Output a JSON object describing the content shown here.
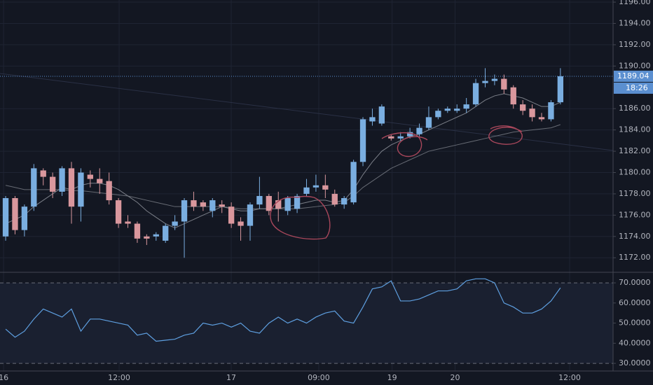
{
  "chart_data": [
    {
      "type": "candlestick",
      "xlim": [
        -0.6,
        64.6
      ],
      "xticks": [
        {
          "value": -0.22,
          "label": "16"
        },
        {
          "value": 12.07,
          "label": "12:00"
        },
        {
          "value": 23.99,
          "label": "17"
        },
        {
          "value": 33.3,
          "label": "09:00"
        },
        {
          "value": 41.1,
          "label": "19"
        },
        {
          "value": 47.8,
          "label": "20"
        },
        {
          "value": 59.98,
          "label": "12:00"
        }
      ],
      "ylim": [
        1170.7,
        1196.2
      ],
      "yticks": [
        {
          "value": 1172,
          "label": "1172.00"
        },
        {
          "value": 1174,
          "label": "1174.00"
        },
        {
          "value": 1176,
          "label": "1176.00"
        },
        {
          "value": 1178,
          "label": "1178.00"
        },
        {
          "value": 1180,
          "label": "1180.00"
        },
        {
          "value": 1182,
          "label": "1182.00"
        },
        {
          "value": 1184,
          "label": "1184.00"
        },
        {
          "value": 1186,
          "label": "1186.00"
        },
        {
          "value": 1190,
          "label": "1190.00"
        },
        {
          "value": 1192,
          "label": "1192.00"
        },
        {
          "value": 1194,
          "label": "1194.00"
        },
        {
          "value": 1196,
          "label": "1196.00"
        }
      ],
      "grid": true,
      "up_color": "#7aaee0",
      "down_color": "#d9979d",
      "open": [
        1174,
        1177.6,
        1174.6,
        1176.8,
        1180.2,
        1179.6,
        1178.2,
        1180.4,
        1176.8,
        1179.8,
        1179.4,
        1179.2,
        1177.4,
        1175.4,
        1175.2,
        1174,
        1174,
        1173.6,
        1175,
        1175.4,
        1177.4,
        1177.2,
        1176.4,
        1177,
        1176.8,
        1175.4,
        1175,
        1177,
        1177.8,
        1177.4,
        1176.4,
        1176.6,
        1178,
        1178.6,
        1178.8,
        1178,
        1177,
        1177.2,
        1181,
        1184.8,
        1184.6,
        1183.4,
        1183.2,
        1183.4,
        1183.6,
        1184.2,
        1185.2,
        1185.8,
        1185.8,
        1186,
        1186.4,
        1188.4,
        1188.6,
        1188.8,
        1188,
        1186.4,
        1186,
        1185.2,
        1185,
        1186.6
      ],
      "high": [
        1177.8,
        1177.8,
        1177,
        1180.8,
        1180.4,
        1180,
        1180.6,
        1181,
        1180.4,
        1180.2,
        1180.4,
        1180,
        1177.6,
        1176,
        1175.4,
        1174.2,
        1174.4,
        1175.2,
        1176,
        1177.6,
        1178.2,
        1177.4,
        1177.6,
        1177.4,
        1177.2,
        1175.8,
        1177.2,
        1179.6,
        1178,
        1178.2,
        1177.8,
        1178,
        1179.4,
        1179.8,
        1179.8,
        1178.4,
        1177.8,
        1181.2,
        1185.2,
        1186,
        1186.4,
        1183.6,
        1183.8,
        1184.2,
        1184.6,
        1186.2,
        1186,
        1186.2,
        1186.4,
        1187,
        1188.8,
        1189.8,
        1189.2,
        1189.2,
        1188.2,
        1186.8,
        1186.4,
        1185.6,
        1186.8,
        1189.8
      ],
      "low": [
        1173.6,
        1174.2,
        1174,
        1176.4,
        1178.8,
        1177.6,
        1177.8,
        1175.2,
        1175.4,
        1178.6,
        1178,
        1177,
        1174.8,
        1174.8,
        1173.4,
        1173.2,
        1173.6,
        1173.4,
        1174.6,
        1172,
        1176.4,
        1176.4,
        1175.8,
        1176.2,
        1174.8,
        1173.6,
        1173.6,
        1176.6,
        1176,
        1175.4,
        1176,
        1176.2,
        1177.8,
        1178.2,
        1177.6,
        1176.8,
        1176.6,
        1177,
        1180.6,
        1184.4,
        1184.4,
        1183,
        1183,
        1183.2,
        1183.4,
        1184,
        1185,
        1185.6,
        1185.6,
        1185.6,
        1186.2,
        1188,
        1188.2,
        1187.4,
        1186,
        1185.4,
        1184.8,
        1184.8,
        1184.8,
        1186.4
      ],
      "close": [
        1177.6,
        1174.6,
        1176.8,
        1180.4,
        1179.6,
        1178.2,
        1180.4,
        1176.8,
        1180,
        1179.4,
        1179,
        1177.4,
        1175.2,
        1175.2,
        1173.8,
        1173.8,
        1174.2,
        1175,
        1175.4,
        1177.4,
        1176.8,
        1176.8,
        1177.4,
        1176.8,
        1175.2,
        1175,
        1177,
        1177.8,
        1176.4,
        1176.6,
        1177.6,
        1177.8,
        1178.6,
        1178.8,
        1178.4,
        1177,
        1177.6,
        1181,
        1185,
        1185.2,
        1186.2,
        1183.2,
        1183.4,
        1183.8,
        1184.2,
        1185.2,
        1185.8,
        1186,
        1186,
        1186.4,
        1188.4,
        1188.6,
        1188.8,
        1187.8,
        1186.4,
        1185.8,
        1185.2,
        1185,
        1186.6,
        1189.04
      ],
      "series": [
        {
          "color": "#9598a1",
          "values": [
            1175.2,
            1175.6,
            1176,
            1176.8,
            1177.4,
            1178,
            1178.6,
            1178.4,
            1178.8,
            1179,
            1179,
            1178.8,
            1178.4,
            1177.8,
            1177.2,
            1176.4,
            1175.8,
            1175.2,
            1174.8,
            1175.2,
            1175.6,
            1176,
            1176.4,
            1176.8,
            1176.6,
            1176.4,
            1176.4,
            1176.6,
            1176.6,
            1176.6,
            1176.8,
            1177,
            1177.2,
            1177.4,
            1177.4,
            1177.2,
            1177.4,
            1178.4,
            1179.8,
            1181,
            1182,
            1182.6,
            1183,
            1183.4,
            1183.6,
            1184,
            1184.4,
            1184.8,
            1185.2,
            1185.6,
            1186.2,
            1186.8,
            1187.2,
            1187.4,
            1187.2,
            1187,
            1186.6,
            1186.2,
            1186.2,
            1186.6
          ]
        },
        {
          "color": "#7c7f88",
          "values": [
            1178.8,
            1178.6,
            1178.4,
            1178.4,
            1178.4,
            1178.4,
            1178.4,
            1178.3,
            1178.3,
            1178.2,
            1178.1,
            1178,
            1177.9,
            1177.8,
            1177.6,
            1177.4,
            1177.2,
            1177,
            1176.8,
            1176.8,
            1176.8,
            1176.8,
            1176.8,
            1176.8,
            1176.7,
            1176.6,
            1176.6,
            1176.6,
            1176.6,
            1176.6,
            1176.6,
            1176.6,
            1176.7,
            1176.8,
            1176.9,
            1177,
            1177.2,
            1177.8,
            1178.6,
            1179.2,
            1179.8,
            1180.4,
            1180.8,
            1181.2,
            1181.6,
            1182,
            1182.2,
            1182.4,
            1182.6,
            1182.8,
            1183,
            1183.2,
            1183.4,
            1183.6,
            1183.8,
            1183.9,
            1184,
            1184.1,
            1184.2,
            1184.5
          ]
        }
      ],
      "last_price": 1189.04,
      "countdown": "18:26",
      "price_color": "#5b8fd0"
    },
    {
      "type": "line",
      "xlim": [
        -0.6,
        64.6
      ],
      "ylim": [
        26.2,
        74.9
      ],
      "yticks": [
        {
          "value": 30,
          "label": "30.0000"
        },
        {
          "value": 40,
          "label": "40.0000"
        },
        {
          "value": 50,
          "label": "50.0000"
        },
        {
          "value": 60,
          "label": "60.0000"
        },
        {
          "value": 70,
          "label": "70.0000"
        }
      ],
      "color": "#5e9fe0",
      "values": [
        47,
        43,
        46,
        52,
        57,
        55,
        53,
        57,
        46,
        52,
        52,
        51,
        50,
        49,
        44,
        45,
        41,
        41.5,
        42,
        44,
        45,
        50,
        49,
        50,
        48,
        50,
        46,
        45,
        50,
        53,
        50,
        52,
        50,
        53,
        55,
        56,
        51,
        50,
        58,
        67,
        68,
        71,
        61,
        61,
        62,
        64,
        66,
        66,
        67,
        71,
        72,
        72,
        70,
        60,
        58,
        55,
        55,
        57,
        61,
        67.5
      ]
    }
  ]
}
